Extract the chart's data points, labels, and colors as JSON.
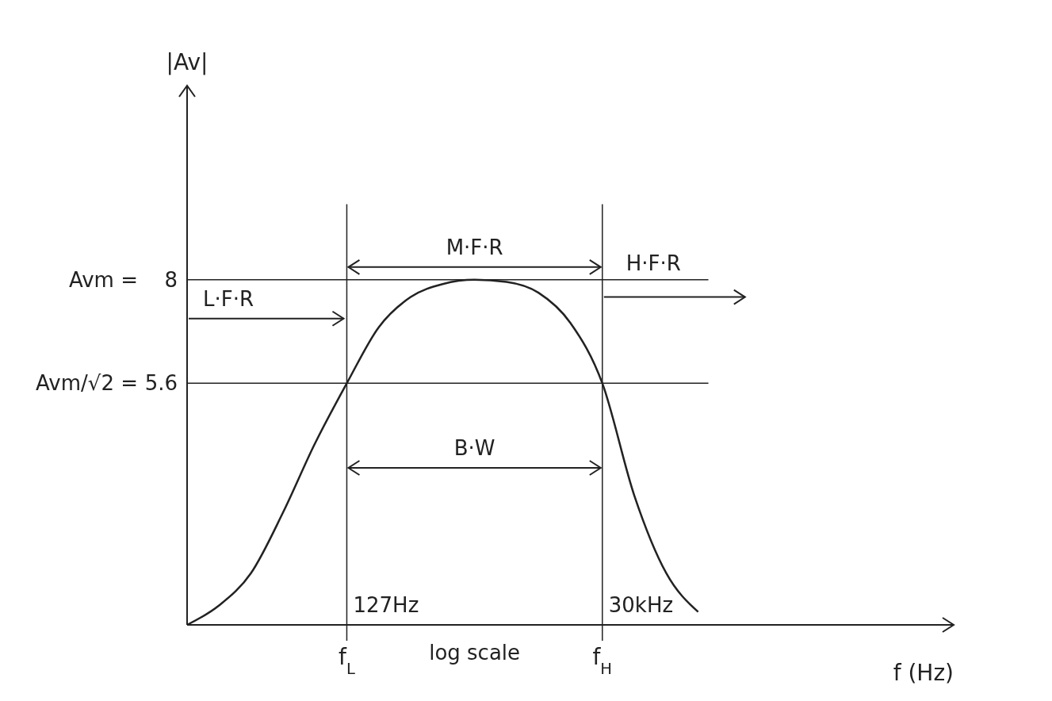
{
  "chart_data": {
    "type": "line",
    "xlabel": "f (Hz)",
    "ylabel": "|Av|",
    "ylim": [
      0,
      12.5
    ],
    "yticks": [
      8,
      5.6
    ],
    "categories": [
      null,
      null,
      null,
      null,
      null,
      "f$_{L}$",
      null,
      null,
      null,
      null,
      null,
      null,
      null,
      "f$_{H}$",
      null,
      null,
      null,
      null,
      null,
      null,
      null,
      null,
      null,
      null,
      null
    ],
    "values": [
      0,
      0.45,
      1.2,
      2.6,
      4.2,
      5.6,
      6.9,
      7.6,
      7.9,
      8,
      7.95,
      7.7,
      7.0,
      5.6,
      3.0,
      1.2,
      0.3,
      null,
      null,
      null,
      null,
      null,
      null,
      null,
      null
    ],
    "color": "#222222",
    "marker": "none",
    "line_style": "solid",
    "ref_lines": [
      {
        "axis": "x",
        "value": "f$_{L}$"
      },
      {
        "axis": "x",
        "value": "f$_{H}$"
      },
      {
        "axis": "y",
        "value": 8
      },
      {
        "axis": "y",
        "value": 5.6
      }
    ],
    "annotations": [
      "M·F·R",
      {
        "text": "L·F·R",
        "x": "f$_{L}$",
        "y": 7.1
      },
      {
        "text": "H·F·R",
        "x": "f$_{H}$",
        "y": 7.6
      },
      "B·W",
      "log scale",
      "Avm =",
      "Avm/√2 =",
      {
        "text": "127Hz",
        "x": "f$_{L}$",
        "y": 0
      },
      {
        "text": "30kHz",
        "x": "f$_{H}$",
        "y": 0
      }
    ]
  }
}
